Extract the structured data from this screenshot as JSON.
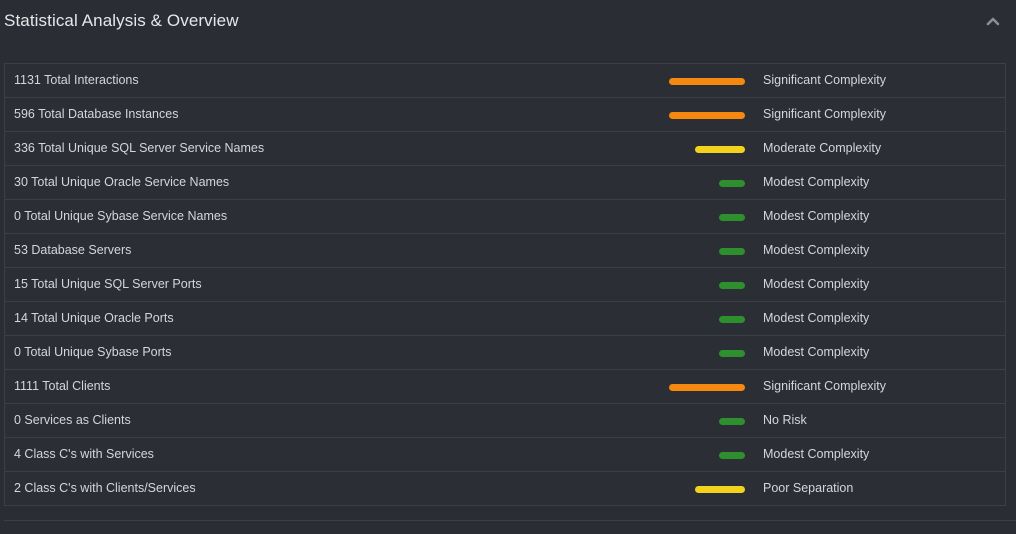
{
  "panel": {
    "title": "Statistical Analysis & Overview",
    "collapse_icon": "chevron-up-icon"
  },
  "colors": {
    "significant": "#f5890f",
    "moderate": "#f2d21c",
    "modest": "#2e8f2e"
  },
  "rows": [
    {
      "label": "1131 Total Interactions",
      "status": "Significant Complexity",
      "level": "significant",
      "bar": "long"
    },
    {
      "label": "596 Total Database Instances",
      "status": "Significant Complexity",
      "level": "significant",
      "bar": "long"
    },
    {
      "label": "336 Total Unique SQL Server Service Names",
      "status": "Moderate Complexity",
      "level": "moderate",
      "bar": "mid"
    },
    {
      "label": "30 Total Unique Oracle Service Names",
      "status": "Modest Complexity",
      "level": "modest",
      "bar": "short"
    },
    {
      "label": "0 Total Unique Sybase Service Names",
      "status": "Modest Complexity",
      "level": "modest",
      "bar": "short"
    },
    {
      "label": "53 Database Servers",
      "status": "Modest Complexity",
      "level": "modest",
      "bar": "short"
    },
    {
      "label": "15 Total Unique SQL Server Ports",
      "status": "Modest Complexity",
      "level": "modest",
      "bar": "short"
    },
    {
      "label": "14 Total Unique Oracle Ports",
      "status": "Modest Complexity",
      "level": "modest",
      "bar": "short"
    },
    {
      "label": "0 Total Unique Sybase Ports",
      "status": "Modest Complexity",
      "level": "modest",
      "bar": "short"
    },
    {
      "label": "1111 Total Clients",
      "status": "Significant Complexity",
      "level": "significant",
      "bar": "long"
    },
    {
      "label": "0 Services as Clients",
      "status": "No Risk",
      "level": "modest",
      "bar": "short"
    },
    {
      "label": "4 Class C's with Services",
      "status": "Modest Complexity",
      "level": "modest",
      "bar": "short"
    },
    {
      "label": "2 Class C's with Clients/Services",
      "status": "Poor Separation",
      "level": "moderate",
      "bar": "mid"
    }
  ]
}
